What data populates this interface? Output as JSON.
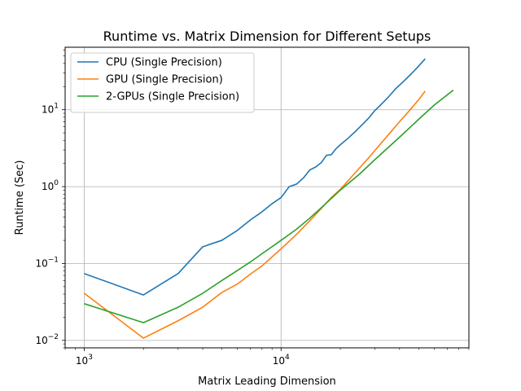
{
  "chart_data": {
    "type": "line",
    "title": "Runtime vs. Matrix Dimension for Different Setups",
    "xlabel": "Matrix Leading Dimension",
    "ylabel": "Runtime (Sec)",
    "xscale": "log",
    "yscale": "log",
    "xlim": [
      800,
      90000
    ],
    "ylim": [
      0.008,
      65
    ],
    "grid": true,
    "legend_position": "upper-left",
    "x_ticks": [
      {
        "value": 1000,
        "base": "10",
        "exp": "3"
      },
      {
        "value": 10000,
        "base": "10",
        "exp": "4"
      }
    ],
    "y_ticks": [
      {
        "value": 0.01,
        "base": "10",
        "exp": "−2"
      },
      {
        "value": 0.1,
        "base": "10",
        "exp": "−1"
      },
      {
        "value": 1,
        "base": "10",
        "exp": "0"
      },
      {
        "value": 10,
        "base": "10",
        "exp": "1"
      }
    ],
    "series": [
      {
        "name": "CPU (Single Precision)",
        "color": "#1f77b4",
        "points": [
          [
            1000,
            0.074
          ],
          [
            2000,
            0.039
          ],
          [
            3000,
            0.074
          ],
          [
            4000,
            0.165
          ],
          [
            5000,
            0.2
          ],
          [
            6000,
            0.27
          ],
          [
            7000,
            0.37
          ],
          [
            8000,
            0.47
          ],
          [
            9000,
            0.6
          ],
          [
            10000,
            0.72
          ],
          [
            11000,
            1.0
          ],
          [
            12000,
            1.08
          ],
          [
            13000,
            1.3
          ],
          [
            14000,
            1.65
          ],
          [
            15000,
            1.8
          ],
          [
            16000,
            2.05
          ],
          [
            17000,
            2.55
          ],
          [
            18000,
            2.6
          ],
          [
            19000,
            3.1
          ],
          [
            20000,
            3.5
          ],
          [
            22000,
            4.3
          ],
          [
            24000,
            5.3
          ],
          [
            26000,
            6.5
          ],
          [
            28000,
            7.9
          ],
          [
            30000,
            9.8
          ],
          [
            32000,
            11.5
          ],
          [
            35000,
            14.5
          ],
          [
            38000,
            18.5
          ],
          [
            42000,
            23.5
          ],
          [
            46000,
            29.5
          ],
          [
            50000,
            37
          ],
          [
            54000,
            46
          ]
        ]
      },
      {
        "name": "GPU (Single Precision)",
        "color": "#ff7f0e",
        "points": [
          [
            1000,
            0.041
          ],
          [
            2000,
            0.0107
          ],
          [
            3000,
            0.018
          ],
          [
            4000,
            0.027
          ],
          [
            5000,
            0.042
          ],
          [
            6000,
            0.054
          ],
          [
            7000,
            0.073
          ],
          [
            8000,
            0.093
          ],
          [
            10000,
            0.155
          ],
          [
            12000,
            0.24
          ],
          [
            14000,
            0.36
          ],
          [
            16000,
            0.52
          ],
          [
            18000,
            0.72
          ],
          [
            20000,
            0.92
          ],
          [
            24000,
            1.55
          ],
          [
            28000,
            2.4
          ],
          [
            32000,
            3.6
          ],
          [
            36000,
            5.1
          ],
          [
            40000,
            7.0
          ],
          [
            45000,
            9.8
          ],
          [
            50000,
            13.5
          ],
          [
            54000,
            17.5
          ]
        ]
      },
      {
        "name": "2-GPUs (Single Precision)",
        "color": "#2ca02c",
        "points": [
          [
            1000,
            0.03
          ],
          [
            2000,
            0.017
          ],
          [
            3000,
            0.027
          ],
          [
            4000,
            0.041
          ],
          [
            5000,
            0.06
          ],
          [
            6000,
            0.081
          ],
          [
            7000,
            0.105
          ],
          [
            8000,
            0.134
          ],
          [
            10000,
            0.2
          ],
          [
            12000,
            0.28
          ],
          [
            14000,
            0.39
          ],
          [
            16000,
            0.53
          ],
          [
            20000,
            0.9
          ],
          [
            25000,
            1.45
          ],
          [
            30000,
            2.25
          ],
          [
            40000,
            4.4
          ],
          [
            50000,
            7.5
          ],
          [
            60000,
            11.5
          ],
          [
            75000,
            18.0
          ]
        ]
      }
    ]
  }
}
